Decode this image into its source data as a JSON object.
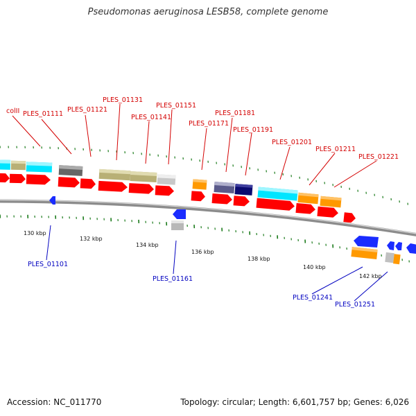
{
  "title": "Pseudomonas aeruginosa LESB58, complete genome",
  "accession": "Accession: NC_011770",
  "summary": "Topology: circular; Length: 6,601,757 bp; Genes: 6,026",
  "colors": {
    "backbone": "#8c8c8c",
    "tick": "#1a7a1a",
    "label_top": "#d40000",
    "label_bottom": "#0000c0",
    "cds": "#ff0000",
    "blue": "#1a2cff"
  },
  "ticks": [
    {
      "label": "130 kbp"
    },
    {
      "label": "132 kbp"
    },
    {
      "label": "134 kbp"
    },
    {
      "label": "136 kbp"
    },
    {
      "label": "138 kbp"
    },
    {
      "label": "140 kbp"
    },
    {
      "label": "142 kbp"
    }
  ],
  "labels_top": [
    {
      "text": "colII"
    },
    {
      "text": "PLES_01111"
    },
    {
      "text": "PLES_01121"
    },
    {
      "text": "PLES_01131"
    },
    {
      "text": "PLES_01141"
    },
    {
      "text": "PLES_01151"
    },
    {
      "text": "PLES_01171"
    },
    {
      "text": "PLES_01181"
    },
    {
      "text": "PLES_01191"
    },
    {
      "text": "PLES_01201"
    },
    {
      "text": "PLES_01211"
    },
    {
      "text": "PLES_01221"
    }
  ],
  "labels_bottom": [
    {
      "text": "PLES_01101"
    },
    {
      "text": "PLES_01161"
    },
    {
      "text": "PLES_01241"
    },
    {
      "text": "PLES_01251"
    }
  ]
}
